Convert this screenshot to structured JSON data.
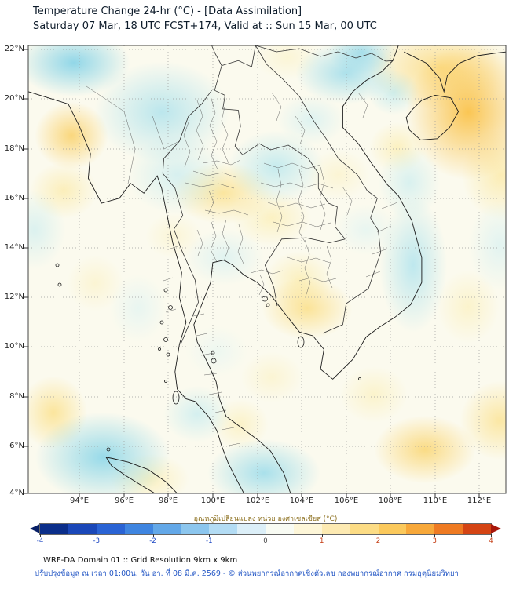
{
  "header": {
    "title": "Temperature Change 24-hr (°C) - [Data Assimilation]",
    "subtitle": "Saturday 07 Mar, 18 UTC FCST+174, Valid at :: Sun 15 Mar, 00 UTC"
  },
  "map": {
    "lat_labels": [
      "22°N",
      "20°N",
      "18°N",
      "16°N",
      "14°N",
      "12°N",
      "10°N",
      "8°N",
      "6°N",
      "4°N"
    ],
    "lon_labels": [
      "94°E",
      "96°E",
      "98°E",
      "100°E",
      "102°E",
      "104°E",
      "106°E",
      "108°E",
      "110°E",
      "112°E"
    ]
  },
  "colorbar": {
    "label": "อุณหภูมิเปลี่ยนแปลง หน่วย องศาเซลเซียส (°C)",
    "tick_labels": [
      "-4",
      "-3",
      "-2",
      "-1",
      "0",
      "1",
      "2",
      "3",
      "4"
    ],
    "colors": [
      "#0b2e8a",
      "#1a47b8",
      "#2a63d4",
      "#3f85e0",
      "#63a8e8",
      "#8cc6ee",
      "#b3dcf4",
      "#dceff8",
      "#f8fbf3",
      "#fdf6d8",
      "#fdeab2",
      "#fcdc85",
      "#fbc95c",
      "#f7a83a",
      "#ee7a22",
      "#d44414"
    ],
    "arrow_left_color": "#071f66",
    "arrow_right_color": "#a8170b",
    "negative_label_color": "#1a44c2",
    "positive_label_color": "#c43a10",
    "zero_label_color": "#444444"
  },
  "footer": {
    "line1": "WRF-DA Domain 01 :: Grid Resolution 9km x 9km",
    "line2": "ปรับปรุงข้อมูล ณ เวลา 01:00น. วัน อา. ที่ 08 มี.ค. 2569 - © ส่วนพยากรณ์อากาศเชิงตัวเลข กองพยากรณ์อากาศ กรมอุตุนิยมวิทยา"
  },
  "chart_data": {
    "type": "heatmap",
    "title": "Temperature Change 24-hr (°C) - [Data Assimilation]",
    "subtitle": "Saturday 07 Mar, 18 UTC FCST+174, Valid at :: Sun 15 Mar, 00 UTC",
    "x_ticks": [
      "94°E",
      "96°E",
      "98°E",
      "100°E",
      "102°E",
      "104°E",
      "106°E",
      "108°E",
      "110°E",
      "112°E"
    ],
    "y_ticks": [
      "22°N",
      "20°N",
      "18°N",
      "16°N",
      "14°N",
      "12°N",
      "10°N",
      "8°N",
      "6°N",
      "4°N"
    ],
    "colorbar_label": "อุณหภูมิเปลี่ยนแปลง หน่วย องศาเซลเซียส (°C)",
    "colorbar_range": [
      -4,
      4
    ],
    "units": "°C",
    "grid": true,
    "legend_position": "bottom"
  }
}
